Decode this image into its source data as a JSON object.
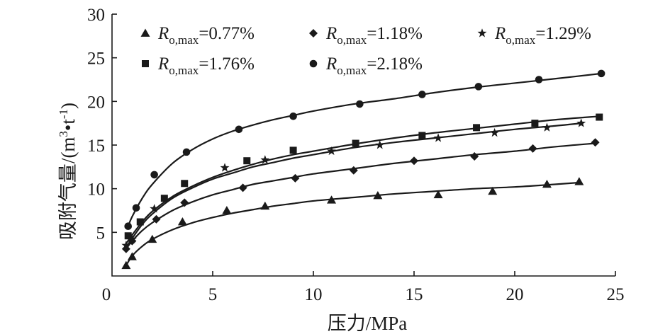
{
  "chart_data": {
    "type": "scatter",
    "xlabel": "压力/MPa",
    "ylabel": "吸附气量/(m³•t⁻¹)",
    "ylabel_parts": {
      "main": "吸附气量/(m",
      "sup1": "3",
      "mid": "•t",
      "sup2": "-1",
      "end": ")"
    },
    "xlim": [
      0,
      25
    ],
    "ylim": [
      0,
      30
    ],
    "xticks": [
      0,
      5,
      10,
      15,
      20,
      25
    ],
    "yticks": [
      5,
      10,
      15,
      20,
      25,
      30
    ],
    "legend_position": "top",
    "series": [
      {
        "name": "Ro,max=0.77%",
        "name_parts": {
          "r": "R",
          "sub": "o,max",
          "val": "=0.77%"
        },
        "marker": "triangle",
        "points": [
          [
            0.7,
            1.2
          ],
          [
            1.0,
            2.2
          ],
          [
            2.0,
            4.2
          ],
          [
            3.5,
            6.2
          ],
          [
            5.7,
            7.5
          ],
          [
            7.6,
            8.0
          ],
          [
            10.9,
            8.7
          ],
          [
            13.2,
            9.2
          ],
          [
            16.2,
            9.3
          ],
          [
            18.9,
            9.7
          ],
          [
            21.6,
            10.5
          ],
          [
            23.2,
            10.8
          ]
        ],
        "fit": [
          [
            0.7,
            1.2
          ],
          [
            1.0,
            2.3
          ],
          [
            1.5,
            3.4
          ],
          [
            2.0,
            4.2
          ],
          [
            3.0,
            5.3
          ],
          [
            4.0,
            6.1
          ],
          [
            5.0,
            6.7
          ],
          [
            6.0,
            7.2
          ],
          [
            7.0,
            7.6
          ],
          [
            8.0,
            8.0
          ],
          [
            9.0,
            8.3
          ],
          [
            10.0,
            8.6
          ],
          [
            12.0,
            9.0
          ],
          [
            14.0,
            9.4
          ],
          [
            16.0,
            9.7
          ],
          [
            18.0,
            10.0
          ],
          [
            20.0,
            10.2
          ],
          [
            22.0,
            10.5
          ],
          [
            23.2,
            10.7
          ]
        ]
      },
      {
        "name": "Ro,max=1.18%",
        "name_parts": {
          "r": "R",
          "sub": "o,max",
          "val": "=1.18%"
        },
        "marker": "diamond",
        "points": [
          [
            0.7,
            3.1
          ],
          [
            1.0,
            4.0
          ],
          [
            2.2,
            6.5
          ],
          [
            3.6,
            8.4
          ],
          [
            6.5,
            10.1
          ],
          [
            9.1,
            11.2
          ],
          [
            12.0,
            12.1
          ],
          [
            15.0,
            13.2
          ],
          [
            18.0,
            13.7
          ],
          [
            20.9,
            14.6
          ],
          [
            24.0,
            15.3
          ]
        ],
        "fit": [
          [
            0.7,
            3.1
          ],
          [
            1.0,
            4.0
          ],
          [
            1.5,
            5.2
          ],
          [
            2.0,
            6.1
          ],
          [
            3.0,
            7.5
          ],
          [
            4.0,
            8.5
          ],
          [
            5.0,
            9.3
          ],
          [
            6.0,
            9.9
          ],
          [
            7.0,
            10.5
          ],
          [
            8.0,
            10.9
          ],
          [
            9.0,
            11.3
          ],
          [
            10.0,
            11.7
          ],
          [
            12.0,
            12.3
          ],
          [
            14.0,
            12.9
          ],
          [
            16.0,
            13.4
          ],
          [
            18.0,
            13.9
          ],
          [
            20.0,
            14.3
          ],
          [
            22.0,
            14.8
          ],
          [
            24.0,
            15.2
          ]
        ]
      },
      {
        "name": "Ro,max=1.29%",
        "name_parts": {
          "r": "R",
          "sub": "o,max",
          "val": "=1.29%"
        },
        "marker": "star",
        "points": [
          [
            0.7,
            3.5
          ],
          [
            1.0,
            4.2
          ],
          [
            2.1,
            7.7
          ],
          [
            5.6,
            12.4
          ],
          [
            7.6,
            13.3
          ],
          [
            10.9,
            14.3
          ],
          [
            13.3,
            15.0
          ],
          [
            16.2,
            15.8
          ],
          [
            19.0,
            16.4
          ],
          [
            21.6,
            17.0
          ],
          [
            23.3,
            17.5
          ]
        ],
        "fit": [
          [
            0.7,
            3.3
          ],
          [
            1.0,
            4.3
          ],
          [
            1.5,
            5.9
          ],
          [
            2.0,
            7.1
          ],
          [
            3.0,
            8.9
          ],
          [
            4.0,
            10.1
          ],
          [
            5.0,
            11.1
          ],
          [
            6.0,
            11.8
          ],
          [
            7.0,
            12.5
          ],
          [
            8.0,
            13.0
          ],
          [
            9.0,
            13.5
          ],
          [
            10.0,
            13.9
          ],
          [
            12.0,
            14.7
          ],
          [
            14.0,
            15.3
          ],
          [
            16.0,
            15.8
          ],
          [
            18.0,
            16.3
          ],
          [
            20.0,
            16.8
          ],
          [
            22.0,
            17.2
          ],
          [
            23.3,
            17.5
          ]
        ]
      },
      {
        "name": "Ro,max=1.76%",
        "name_parts": {
          "r": "R",
          "sub": "o,max",
          "val": "=1.76%"
        },
        "marker": "square",
        "points": [
          [
            0.8,
            4.6
          ],
          [
            1.4,
            6.2
          ],
          [
            2.6,
            8.9
          ],
          [
            3.6,
            10.6
          ],
          [
            6.7,
            13.2
          ],
          [
            9.0,
            14.4
          ],
          [
            12.1,
            15.2
          ],
          [
            15.4,
            16.1
          ],
          [
            18.1,
            17.0
          ],
          [
            21.0,
            17.5
          ],
          [
            24.2,
            18.2
          ]
        ],
        "fit": [
          [
            0.7,
            3.7
          ],
          [
            1.0,
            4.7
          ],
          [
            1.5,
            6.2
          ],
          [
            2.0,
            7.4
          ],
          [
            3.0,
            9.1
          ],
          [
            4.0,
            10.3
          ],
          [
            5.0,
            11.3
          ],
          [
            6.0,
            12.1
          ],
          [
            7.0,
            12.8
          ],
          [
            8.0,
            13.4
          ],
          [
            9.0,
            13.9
          ],
          [
            10.0,
            14.3
          ],
          [
            12.0,
            15.1
          ],
          [
            14.0,
            15.8
          ],
          [
            16.0,
            16.4
          ],
          [
            18.0,
            16.9
          ],
          [
            20.0,
            17.4
          ],
          [
            22.0,
            17.9
          ],
          [
            24.2,
            18.3
          ]
        ]
      },
      {
        "name": "Ro,max=2.18%",
        "name_parts": {
          "r": "R",
          "sub": "o,max",
          "val": "=2.18%"
        },
        "marker": "circle",
        "points": [
          [
            0.8,
            5.7
          ],
          [
            1.2,
            7.8
          ],
          [
            2.1,
            11.6
          ],
          [
            3.7,
            14.2
          ],
          [
            6.3,
            16.8
          ],
          [
            9.0,
            18.3
          ],
          [
            12.3,
            19.7
          ],
          [
            15.4,
            20.8
          ],
          [
            18.2,
            21.7
          ],
          [
            21.2,
            22.5
          ],
          [
            24.3,
            23.2
          ]
        ],
        "fit": [
          [
            0.8,
            5.7
          ],
          [
            1.0,
            6.8
          ],
          [
            1.5,
            8.9
          ],
          [
            2.0,
            10.5
          ],
          [
            3.0,
            12.9
          ],
          [
            4.0,
            14.5
          ],
          [
            5.0,
            15.7
          ],
          [
            6.0,
            16.6
          ],
          [
            7.0,
            17.3
          ],
          [
            8.0,
            17.9
          ],
          [
            9.0,
            18.4
          ],
          [
            10.0,
            18.9
          ],
          [
            12.0,
            19.7
          ],
          [
            14.0,
            20.3
          ],
          [
            16.0,
            21.0
          ],
          [
            18.0,
            21.6
          ],
          [
            20.0,
            22.1
          ],
          [
            22.0,
            22.6
          ],
          [
            24.3,
            23.2
          ]
        ]
      }
    ]
  }
}
